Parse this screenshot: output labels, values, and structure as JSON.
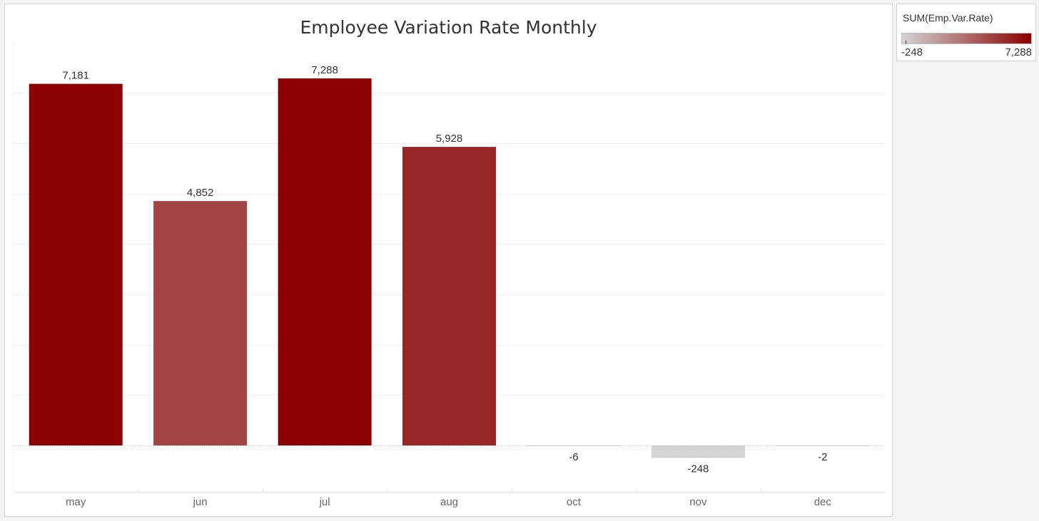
{
  "chart_data": {
    "type": "bar",
    "title": "Employee Variation Rate Monthly",
    "categories": [
      "may",
      "jun",
      "jul",
      "aug",
      "oct",
      "nov",
      "dec"
    ],
    "values": [
      7181,
      4852,
      7288,
      5928,
      -6,
      -248,
      -2
    ],
    "value_labels": [
      "7,181",
      "4,852",
      "7,288",
      "5,928",
      "-6",
      "-248",
      "-2"
    ],
    "ylim": [
      -900,
      8000
    ],
    "grid": true,
    "color_scale": {
      "min": -248,
      "max": 7288,
      "min_color": "#d4d4d4",
      "max_color": "#8b0000"
    }
  },
  "legend": {
    "title": "SUM(Emp.Var.Rate)",
    "min_label": "-248",
    "max_label": "7,288",
    "position": "top-right"
  }
}
